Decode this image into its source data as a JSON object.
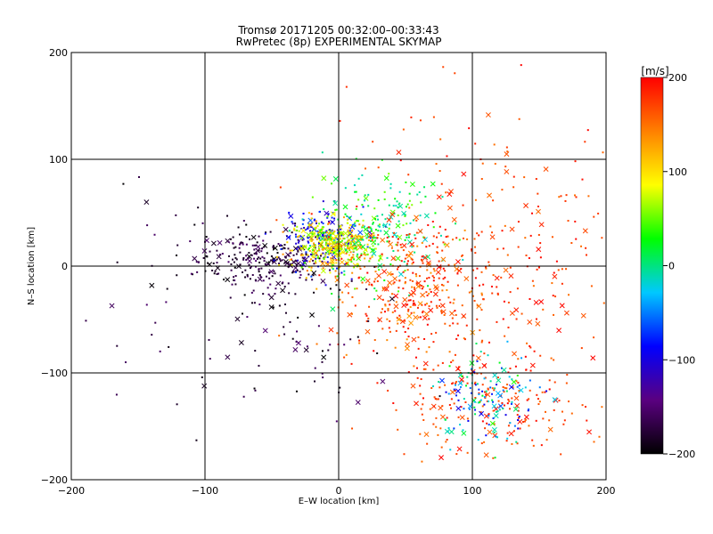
{
  "chart_data": {
    "type": "scatter",
    "title": "Tromsø 20171205 00:32:00–00:33:43",
    "subtitle": "RwPretec (8p) EXPERIMENTAL SKYMAP",
    "xlabel": "E–W location [km]",
    "ylabel": "N–S location [km]",
    "xlim": [
      -200,
      200
    ],
    "ylim": [
      -200,
      200
    ],
    "xticks": [
      -200,
      -100,
      0,
      100,
      200
    ],
    "yticks": [
      -200,
      -100,
      0,
      100,
      200
    ],
    "grid": true,
    "markers": [
      "dot",
      "x"
    ],
    "colorbar": {
      "label": "[m/s]",
      "range": [
        -200,
        200
      ],
      "ticks": [
        -200,
        -100,
        0,
        100,
        200
      ],
      "colormap": [
        "#000000",
        "#5a0080",
        "#0000ff",
        "#00c8ff",
        "#00ff00",
        "#ffff00",
        "#ff8000",
        "#ff0000"
      ]
    },
    "clusters": [
      {
        "velocity_range": [
          -200,
          -150
        ],
        "center": [
          -55,
          5
        ],
        "spread": [
          25,
          15
        ],
        "count": 260
      },
      {
        "velocity_range": [
          -200,
          -150
        ],
        "center": [
          -130,
          -30
        ],
        "spread": [
          40,
          60
        ],
        "count": 45
      },
      {
        "velocity_range": [
          -120,
          -60
        ],
        "center": [
          -12,
          25
        ],
        "spread": [
          15,
          15
        ],
        "count": 170
      },
      {
        "velocity_range": [
          40,
          140
        ],
        "center": [
          -5,
          20
        ],
        "spread": [
          14,
          11
        ],
        "count": 360
      },
      {
        "velocity_range": [
          -20,
          60
        ],
        "center": [
          25,
          35
        ],
        "spread": [
          25,
          25
        ],
        "count": 220
      },
      {
        "velocity_range": [
          130,
          200
        ],
        "center": [
          55,
          -20
        ],
        "spread": [
          30,
          30
        ],
        "count": 340
      },
      {
        "velocity_range": [
          150,
          200
        ],
        "center": [
          120,
          20
        ],
        "spread": [
          55,
          70
        ],
        "count": 260
      },
      {
        "velocity_range": [
          150,
          200
        ],
        "center": [
          110,
          -130
        ],
        "spread": [
          35,
          25
        ],
        "count": 200
      },
      {
        "velocity_range": [
          -100,
          40
        ],
        "center": [
          110,
          -125
        ],
        "spread": [
          20,
          20
        ],
        "count": 130
      },
      {
        "velocity_range": [
          -200,
          -150
        ],
        "center": [
          -20,
          -70
        ],
        "spread": [
          30,
          30
        ],
        "count": 60
      }
    ]
  }
}
